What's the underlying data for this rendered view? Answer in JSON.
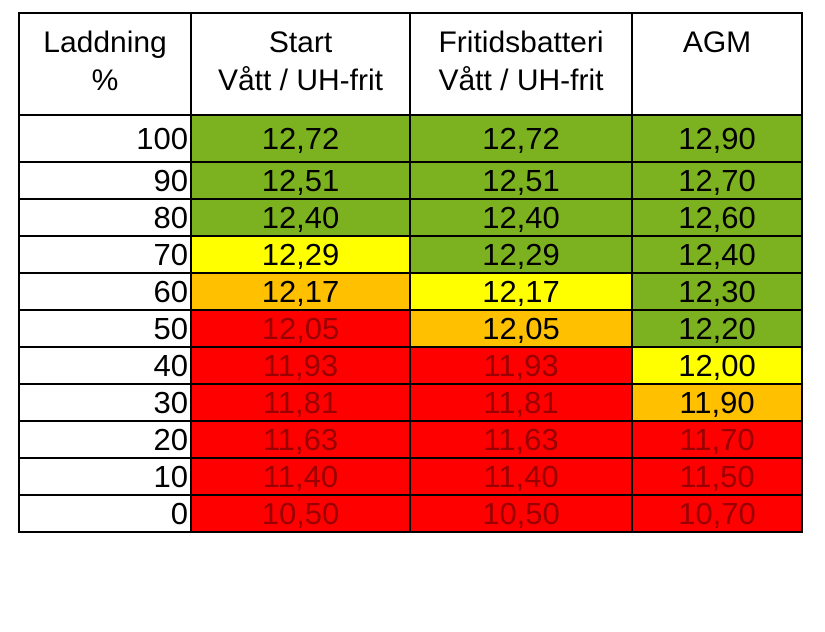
{
  "header": {
    "col_charge_line1": "Laddning",
    "col_charge_line2": "%",
    "col_start_line1": "Start",
    "col_start_line2": "Vått / UH-frit",
    "col_leisure_line1": "Fritidsbatteri",
    "col_leisure_line2": "Vått / UH-frit",
    "col_agm_line1": "AGM"
  },
  "colors": {
    "green": "#7cb21f",
    "yellow": "#ffff00",
    "orange": "#ffc000",
    "red": "#ff0000"
  },
  "rows": [
    {
      "pct": "100",
      "start": "12,72",
      "start_color": "green",
      "leisure": "12,72",
      "leisure_color": "green",
      "agm": "12,90",
      "agm_color": "green"
    },
    {
      "pct": "90",
      "start": "12,51",
      "start_color": "green",
      "leisure": "12,51",
      "leisure_color": "green",
      "agm": "12,70",
      "agm_color": "green"
    },
    {
      "pct": "80",
      "start": "12,40",
      "start_color": "green",
      "leisure": "12,40",
      "leisure_color": "green",
      "agm": "12,60",
      "agm_color": "green"
    },
    {
      "pct": "70",
      "start": "12,29",
      "start_color": "yellow",
      "leisure": "12,29",
      "leisure_color": "green",
      "agm": "12,40",
      "agm_color": "green"
    },
    {
      "pct": "60",
      "start": "12,17",
      "start_color": "orange",
      "leisure": "12,17",
      "leisure_color": "yellow",
      "agm": "12,30",
      "agm_color": "green"
    },
    {
      "pct": "50",
      "start": "12,05",
      "start_color": "red",
      "leisure": "12,05",
      "leisure_color": "orange",
      "agm": "12,20",
      "agm_color": "green"
    },
    {
      "pct": "40",
      "start": "11,93",
      "start_color": "red",
      "leisure": "11,93",
      "leisure_color": "red",
      "agm": "12,00",
      "agm_color": "yellow"
    },
    {
      "pct": "30",
      "start": "11,81",
      "start_color": "red",
      "leisure": "11,81",
      "leisure_color": "red",
      "agm": "11,90",
      "agm_color": "orange"
    },
    {
      "pct": "20",
      "start": "11,63",
      "start_color": "red",
      "leisure": "11,63",
      "leisure_color": "red",
      "agm": "11,70",
      "agm_color": "red"
    },
    {
      "pct": "10",
      "start": "11,40",
      "start_color": "red",
      "leisure": "11,40",
      "leisure_color": "red",
      "agm": "11,50",
      "agm_color": "red"
    },
    {
      "pct": "0",
      "start": "10,50",
      "start_color": "red",
      "leisure": "10,50",
      "leisure_color": "red",
      "agm": "10,70",
      "agm_color": "red"
    }
  ]
}
